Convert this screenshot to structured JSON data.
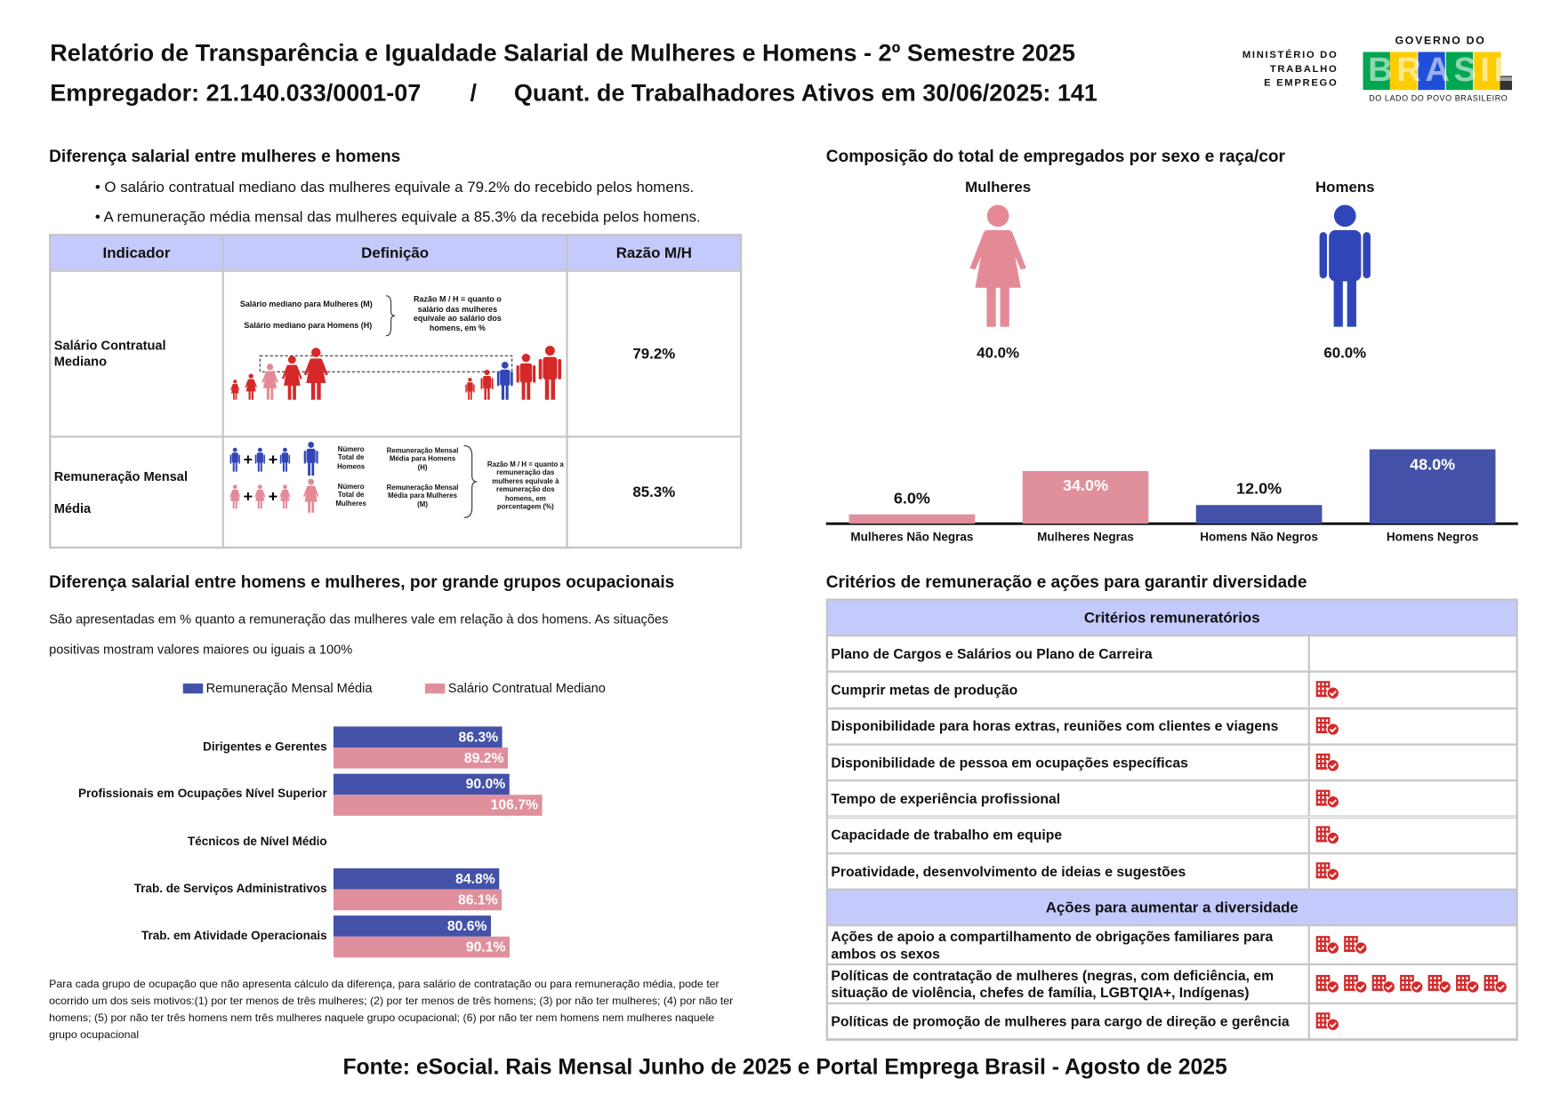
{
  "header": {
    "title": "Relatório de Transparência e Igualdade Salarial de Mulheres e Homens - 2º Semestre 2025",
    "employer": "Empregador: 21.140.033/0001-07",
    "separator": "/",
    "workers": "Quant. de Trabalhadores Ativos em 30/06/2025: 141"
  },
  "logo": {
    "ministry": [
      "MINISTÉRIO DO",
      "TRABALHO",
      "E EMPREGO"
    ],
    "government": "GOVERNO DO",
    "brand": "BRASIL",
    "tagline": "DO LADO DO POVO BRASILEIRO"
  },
  "salary_gap": {
    "title": "Diferença salarial entre mulheres e homens",
    "bullets": [
      "O salário contratual mediano das mulheres equivale a 79.2% do recebido pelos homens.",
      "A remuneração média mensal das mulheres equivale a 85.3% da recebida pelos homens."
    ],
    "table": {
      "columns": [
        "Indicador",
        "Definição",
        "Razão M/H"
      ],
      "rows": [
        {
          "indicator": "Salário Contratual Mediano",
          "ratio": "79.2%",
          "definition": [
            "Salário mediano para Mulheres (M)",
            "Salário mediano para Homens (H)",
            "Razão M / H = quanto o salário das mulheres equivale ao salário dos homens, em %"
          ]
        },
        {
          "indicator": "Remuneração Mensal Média",
          "ratio": "85.3%",
          "definition": [
            "Número Total de Homens",
            "Remuneração Mensal Média para Homens (H)",
            "Número Total de Mulheres",
            "Remuneração Mensal Média para Mulheres (M)",
            "Razão M / H = quanto a remuneração das mulheres equivale à remuneração dos homens, em porcentagem (%)"
          ]
        }
      ]
    }
  },
  "chart_data": [
    {
      "type": "pictogram",
      "title": "Composição do total de empregados por sexo e raça/cor",
      "categories": [
        "Mulheres",
        "Homens"
      ],
      "values": [
        40,
        60
      ],
      "value_labels": [
        "40.0%",
        "60.0%"
      ],
      "colors": [
        "#e48a96",
        "#3046b8"
      ]
    },
    {
      "type": "bar",
      "categories": [
        "Mulheres Não Negras",
        "Mulheres Negras",
        "Homens Não Negros",
        "Homens Negros"
      ],
      "values": [
        6,
        34,
        12,
        48
      ],
      "value_labels": [
        "6.0%",
        "34.0%",
        "12.0%",
        "48.0%"
      ],
      "colors": [
        "#e0909c",
        "#e0909c",
        "#4352a8",
        "#4352a8"
      ]
    },
    {
      "type": "hbar",
      "title": "Diferença salarial entre homens e mulheres, por grande grupos ocupacionais",
      "subtitle": "São apresentadas em % quanto a remuneração das mulheres vale em relação à dos homens. As situações positivas mostram valores maiores ou iguais a 100%",
      "categories": [
        "Dirigentes e Gerentes",
        "Profissionais em Ocupações Nível Superior",
        "Técnicos de Nível Médio",
        "Trab. de Serviços Administrativos",
        "Trab. em Atividade Operacionais"
      ],
      "series": [
        {
          "name": "Remuneração Mensal Média",
          "color": "#4352a8",
          "values": [
            86.3,
            90.0,
            null,
            84.8,
            80.6
          ],
          "value_labels": [
            "86.3%",
            "90.0%",
            null,
            "84.8%",
            "80.6%"
          ]
        },
        {
          "name": "Salário Contratual Mediano",
          "color": "#e0909c",
          "values": [
            89.2,
            106.7,
            null,
            86.1,
            90.1
          ],
          "value_labels": [
            "89.2%",
            "106.7%",
            null,
            "86.1%",
            "90.1%"
          ]
        }
      ],
      "note": "Para cada grupo de ocupação que não apresenta cálculo da diferença, para salário de contratação ou para remuneração média, pode ter ocorrido um dos seis motivos:(1) por ter menos de três mulheres; (2) por ter menos de três homens; (3) por não ter mulheres; (4) por não ter homens; (5) por não ter três homens nem três mulheres naquele grupo ocupacional; (6) por não ter nem homens nem mulheres naquele grupo ocupacional"
    }
  ],
  "criteria": {
    "title": "Critérios de remuneração e ações para garantir diversidade",
    "sections": [
      {
        "heading": "Critérios remuneratórios",
        "rows": [
          {
            "label": "Plano de Cargos e Salários ou Plano de Carreira",
            "icons": 0
          },
          {
            "label": "Cumprir metas de produção",
            "icons": 1
          },
          {
            "label": "Disponibilidade para horas extras, reuniões com clientes e viagens",
            "icons": 1
          },
          {
            "label": "Disponibilidade de pessoa em ocupações específicas",
            "icons": 1
          },
          {
            "label": "Tempo de experiência profissional",
            "icons": 1
          },
          {
            "label": "Capacidade de trabalho em equipe",
            "icons": 1
          },
          {
            "label": "Proatividade, desenvolvimento de ideias e sugestões",
            "icons": 1
          }
        ]
      },
      {
        "heading": "Ações para aumentar a diversidade",
        "rows": [
          {
            "label": "Ações de apoio a compartilhamento de obrigações familiares para ambos os sexos",
            "icons": 2
          },
          {
            "label": "Políticas de contratação de mulheres (negras, com deficiência, em situação de violência, chefes de família, LGBTQIA+, Indígenas)",
            "icons": 7
          },
          {
            "label": "Políticas de promoção de mulheres para cargo de direção e gerência",
            "icons": 1
          }
        ]
      }
    ]
  },
  "source": "Fonte: eSocial. Rais Mensal Junho de 2025 e Portal Emprega Brasil - Agosto de 2025"
}
